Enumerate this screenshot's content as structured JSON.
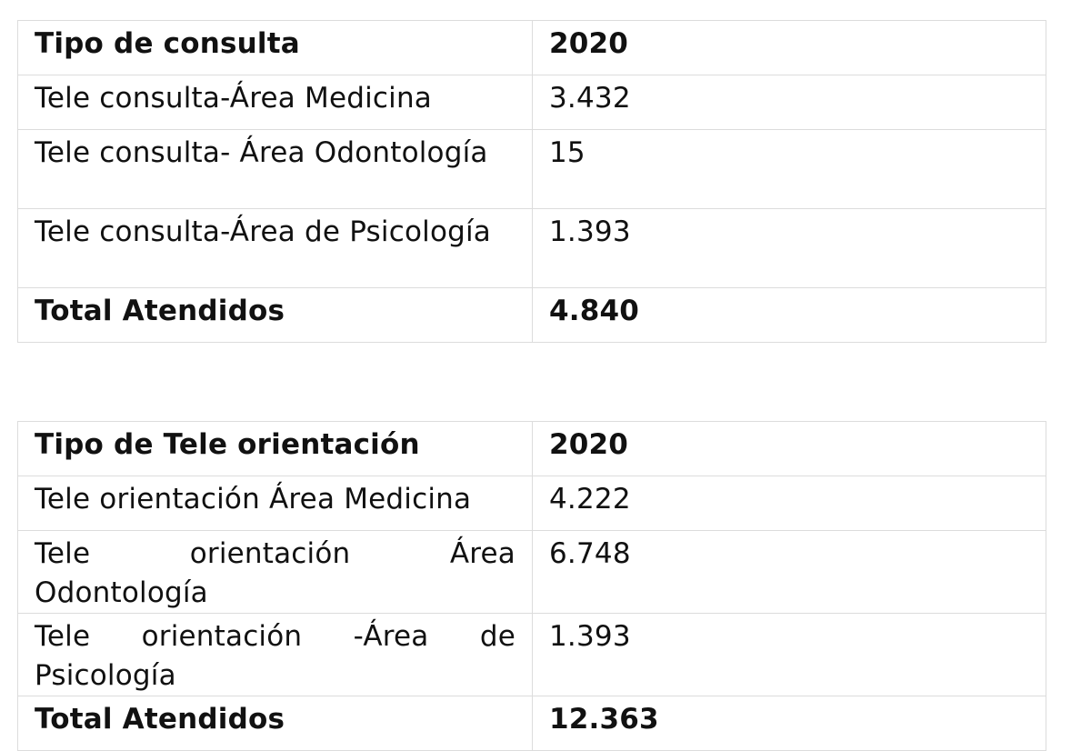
{
  "tables": [
    {
      "header": {
        "label": "Tipo de consulta",
        "year": "2020"
      },
      "rows": [
        {
          "label": "Tele consulta-Área Medicina",
          "value": "3.432"
        },
        {
          "label": "Tele consulta- Área Odontología",
          "value": "15"
        },
        {
          "label": "Tele consulta-Área de Psicología",
          "value": "1.393"
        }
      ],
      "total": {
        "label": "Total Atendidos",
        "value": "4.840"
      }
    },
    {
      "header": {
        "label": "Tipo de Tele orientación",
        "year": "2020"
      },
      "rows": [
        {
          "label": "Tele orientación Área Medicina",
          "value": "4.222"
        },
        {
          "label": "Tele orientación Área Odontología",
          "value": "6.748"
        },
        {
          "label": "Tele orientación -Área de Psicología",
          "value": "1.393"
        }
      ],
      "total": {
        "label": "Total Atendidos",
        "value": "12.363"
      }
    }
  ]
}
